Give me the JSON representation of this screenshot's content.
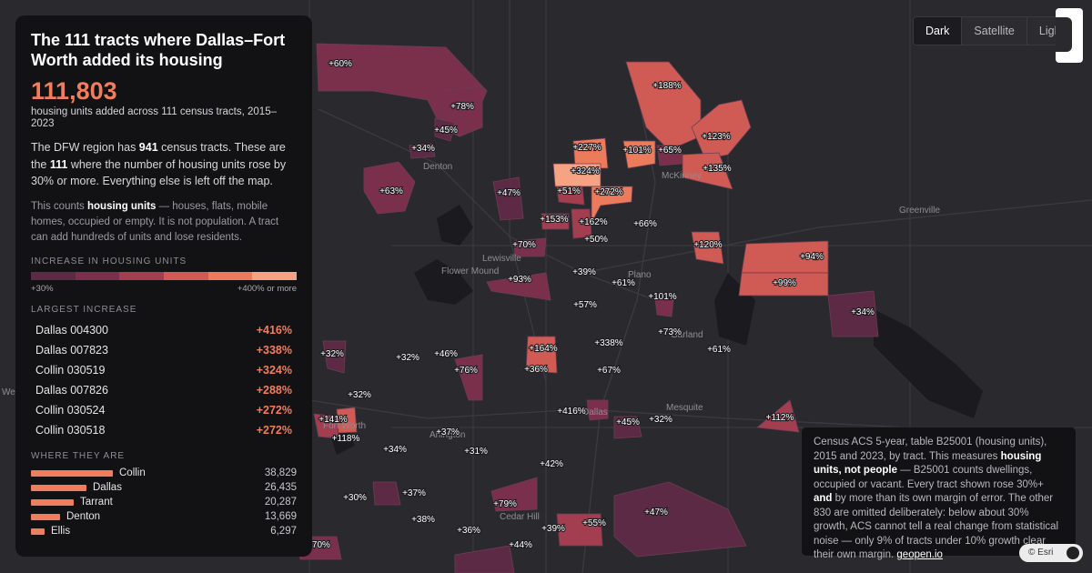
{
  "basemap_toggle": [
    "Dark",
    "Satellite",
    "Light"
  ],
  "basemap_active": "Dark",
  "panel": {
    "title": "The 111 tracts where Dallas–Fort Worth added its housing",
    "big_number": "111,803",
    "big_sub": "housing units added across 111 census tracts, 2015–2023",
    "para1_a": "The DFW region has ",
    "para1_b": "941",
    "para1_c": " census tracts. These are the ",
    "para1_d": "111",
    "para1_e": " where the number of housing units rose by 30% or more. Everything else is left off the map.",
    "para2_a": "This counts ",
    "para2_b": "housing units",
    "para2_c": " — houses, flats, mobile homes, occupied or empty. It is not population. A tract can add hundreds of units and lose residents.",
    "legend_title": "INCREASE IN HOUSING UNITS",
    "legend_colors": [
      "#5c2a44",
      "#7a2f4b",
      "#a33d50",
      "#cf5b54",
      "#ec7b5c",
      "#f6a384"
    ],
    "legend_min": "+30%",
    "legend_max": "+400% or more",
    "largest_title": "LARGEST INCREASE",
    "largest": [
      {
        "name": "Dallas 004300",
        "pct": "+416%"
      },
      {
        "name": "Dallas 007823",
        "pct": "+338%"
      },
      {
        "name": "Collin 030519",
        "pct": "+324%"
      },
      {
        "name": "Dallas 007826",
        "pct": "+288%"
      },
      {
        "name": "Collin 030524",
        "pct": "+272%"
      },
      {
        "name": "Collin 030518",
        "pct": "+272%"
      }
    ],
    "where_title": "WHERE THEY ARE",
    "where": [
      {
        "name": "Collin",
        "count": "38,829",
        "value": 38829
      },
      {
        "name": "Dallas",
        "count": "26,435",
        "value": 26435
      },
      {
        "name": "Tarrant",
        "count": "20,287",
        "value": 20287
      },
      {
        "name": "Denton",
        "count": "13,669",
        "value": 13669
      },
      {
        "name": "Ellis",
        "count": "6,297",
        "value": 6297
      }
    ]
  },
  "note": {
    "t1": "Census ACS 5-year, table B25001 (housing units), 2015 and 2023, by tract. This measures ",
    "t2": "housing units, not people",
    "t3": " — B25001 counts dwellings, occupied or vacant. Every tract shown rose 30%+ ",
    "t4": "and",
    "t5": " by more than its own margin of error. The other 830 are omitted deliberately: below about 30% growth, ACS cannot tell a real change from statistical noise — only 9% of tracts under 10% growth clear their own margin. ",
    "t6": "geopen.io"
  },
  "attribution": "© Esri",
  "cities": [
    {
      "name": "Denton"
    },
    {
      "name": "McKinney"
    },
    {
      "name": "Greenville"
    },
    {
      "name": "Lewisville"
    },
    {
      "name": "Flower Mound"
    },
    {
      "name": "Plano"
    },
    {
      "name": "Dallas"
    },
    {
      "name": "Mesquite"
    },
    {
      "name": "Arlington"
    },
    {
      "name": "Fort Worth"
    },
    {
      "name": "Cedar Hill"
    },
    {
      "name": "Garland"
    },
    {
      "name": "Weatherford"
    }
  ],
  "tract_labels": [
    "+60%",
    "+78%",
    "+45%",
    "+34%",
    "+63%",
    "+47%",
    "+188%",
    "+123%",
    "+135%",
    "+65%",
    "+101%",
    "+227%",
    "+324%",
    "+51%",
    "+272%",
    "+153%",
    "+162%",
    "+50%",
    "+66%",
    "+120%",
    "+94%",
    "+99%",
    "+70%",
    "+93%",
    "+39%",
    "+61%",
    "+101%",
    "+57%",
    "+34%",
    "+73%",
    "+61%",
    "+164%",
    "+36%",
    "+338%",
    "+67%",
    "+32%",
    "+32%",
    "+46%",
    "+76%",
    "+32%",
    "+141%",
    "+118%",
    "+416%",
    "+45%",
    "+32%",
    "+112%",
    "+37%",
    "+31%",
    "+34%",
    "+42%",
    "+30%",
    "+37%",
    "+38%",
    "+79%",
    "+36%",
    "+39%",
    "+55%",
    "+47%",
    "+44%",
    "+70%"
  ]
}
